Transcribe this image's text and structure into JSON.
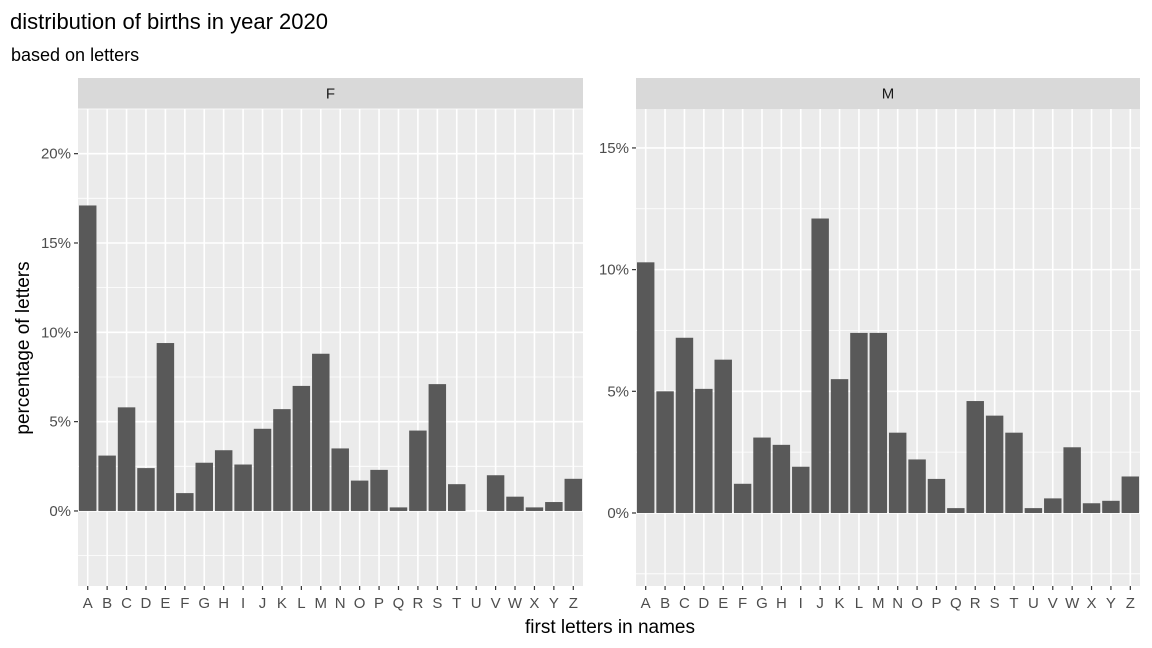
{
  "chart_data": {
    "type": "bar",
    "title": "distribution of births in year 2020",
    "subtitle": "based on letters",
    "xlabel": "first letters in names",
    "ylabel": "percentage of letters",
    "categories": [
      "A",
      "B",
      "C",
      "D",
      "E",
      "F",
      "G",
      "H",
      "I",
      "J",
      "K",
      "L",
      "M",
      "N",
      "O",
      "P",
      "Q",
      "R",
      "S",
      "T",
      "U",
      "V",
      "W",
      "X",
      "Y",
      "Z"
    ],
    "bar_color": "#595959",
    "panel_bg": "#ebebeb",
    "strip_bg": "#d9d9d9",
    "grid": true,
    "facets": [
      {
        "name": "F",
        "ylim": [
          -4.2,
          22.5
        ],
        "yticks": [
          0,
          5,
          10,
          15,
          20
        ],
        "ytick_labels": [
          "0%",
          "5%",
          "10%",
          "15%",
          "20%"
        ],
        "values": [
          17.1,
          3.1,
          5.8,
          2.4,
          9.4,
          1.0,
          2.7,
          3.4,
          2.6,
          4.6,
          5.7,
          7.0,
          8.8,
          3.5,
          1.7,
          2.3,
          0.2,
          4.5,
          7.1,
          1.5,
          0.0,
          2.0,
          0.8,
          0.2,
          0.5,
          1.8
        ]
      },
      {
        "name": "M",
        "ylim": [
          -3.0,
          16.6
        ],
        "yticks": [
          0,
          5,
          10,
          15
        ],
        "ytick_labels": [
          "0%",
          "5%",
          "10%",
          "15%"
        ],
        "values": [
          10.3,
          5.0,
          7.2,
          5.1,
          6.3,
          1.2,
          3.1,
          2.8,
          1.9,
          12.1,
          5.5,
          7.4,
          7.4,
          3.3,
          2.2,
          1.4,
          0.2,
          4.6,
          4.0,
          3.3,
          0.2,
          0.6,
          2.7,
          0.4,
          0.5,
          1.5
        ]
      }
    ]
  }
}
